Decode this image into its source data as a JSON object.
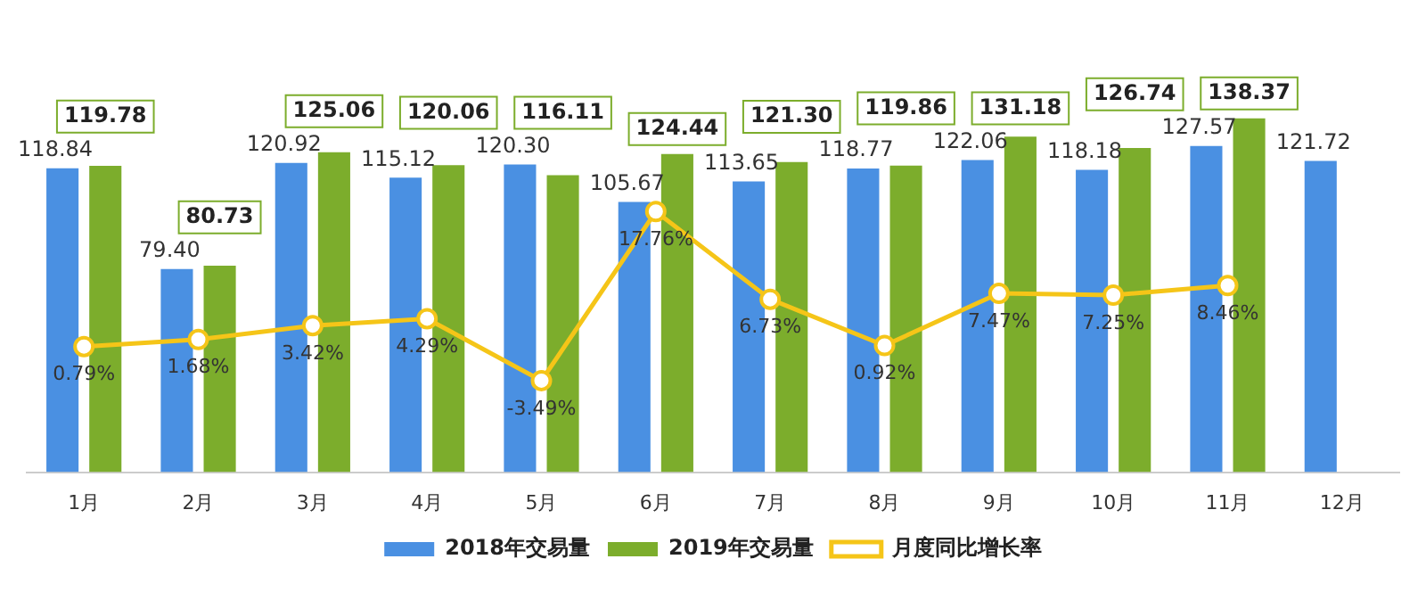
{
  "chart_data": {
    "type": "bar",
    "categories": [
      "1月",
      "2月",
      "3月",
      "4月",
      "5月",
      "6月",
      "7月",
      "8月",
      "9月",
      "10月",
      "11月",
      "12月"
    ],
    "series": [
      {
        "name": "2018年交易量",
        "color": "#4a90e2",
        "values": [
          118.84,
          79.4,
          120.92,
          115.12,
          120.3,
          105.67,
          113.65,
          118.77,
          122.06,
          118.18,
          127.57,
          121.72
        ],
        "value_labels": [
          "118.84",
          "79.40",
          "120.92",
          "115.12",
          "120.30",
          "105.67",
          "113.65",
          "118.77",
          "122.06",
          "118.18",
          "127.57",
          "121.72"
        ]
      },
      {
        "name": "2019年交易量",
        "color": "#7cad2c",
        "values": [
          119.78,
          80.73,
          125.06,
          120.06,
          116.11,
          124.44,
          121.3,
          119.86,
          131.18,
          126.74,
          138.37,
          null
        ],
        "value_labels": [
          "119.78",
          "80.73",
          "125.06",
          "120.06",
          "116.11",
          "124.44",
          "121.30",
          "119.86",
          "131.18",
          "126.74",
          "138.37",
          null
        ]
      },
      {
        "name": "月度同比增长率",
        "type": "line",
        "axis": "y2",
        "color": "#f5c518",
        "marker": "circle",
        "values": [
          0.79,
          1.68,
          3.42,
          4.29,
          -3.49,
          17.76,
          6.73,
          0.92,
          7.47,
          7.25,
          8.46,
          null
        ],
        "value_labels": [
          "0.79%",
          "1.68%",
          "3.42%",
          "4.29%",
          "-3.49%",
          "17.76%",
          "6.73%",
          "0.92%",
          "7.47%",
          "7.25%",
          "8.46%",
          null
        ]
      }
    ],
    "tick_labels": "x",
    "grid": false,
    "legend": "bottom"
  }
}
